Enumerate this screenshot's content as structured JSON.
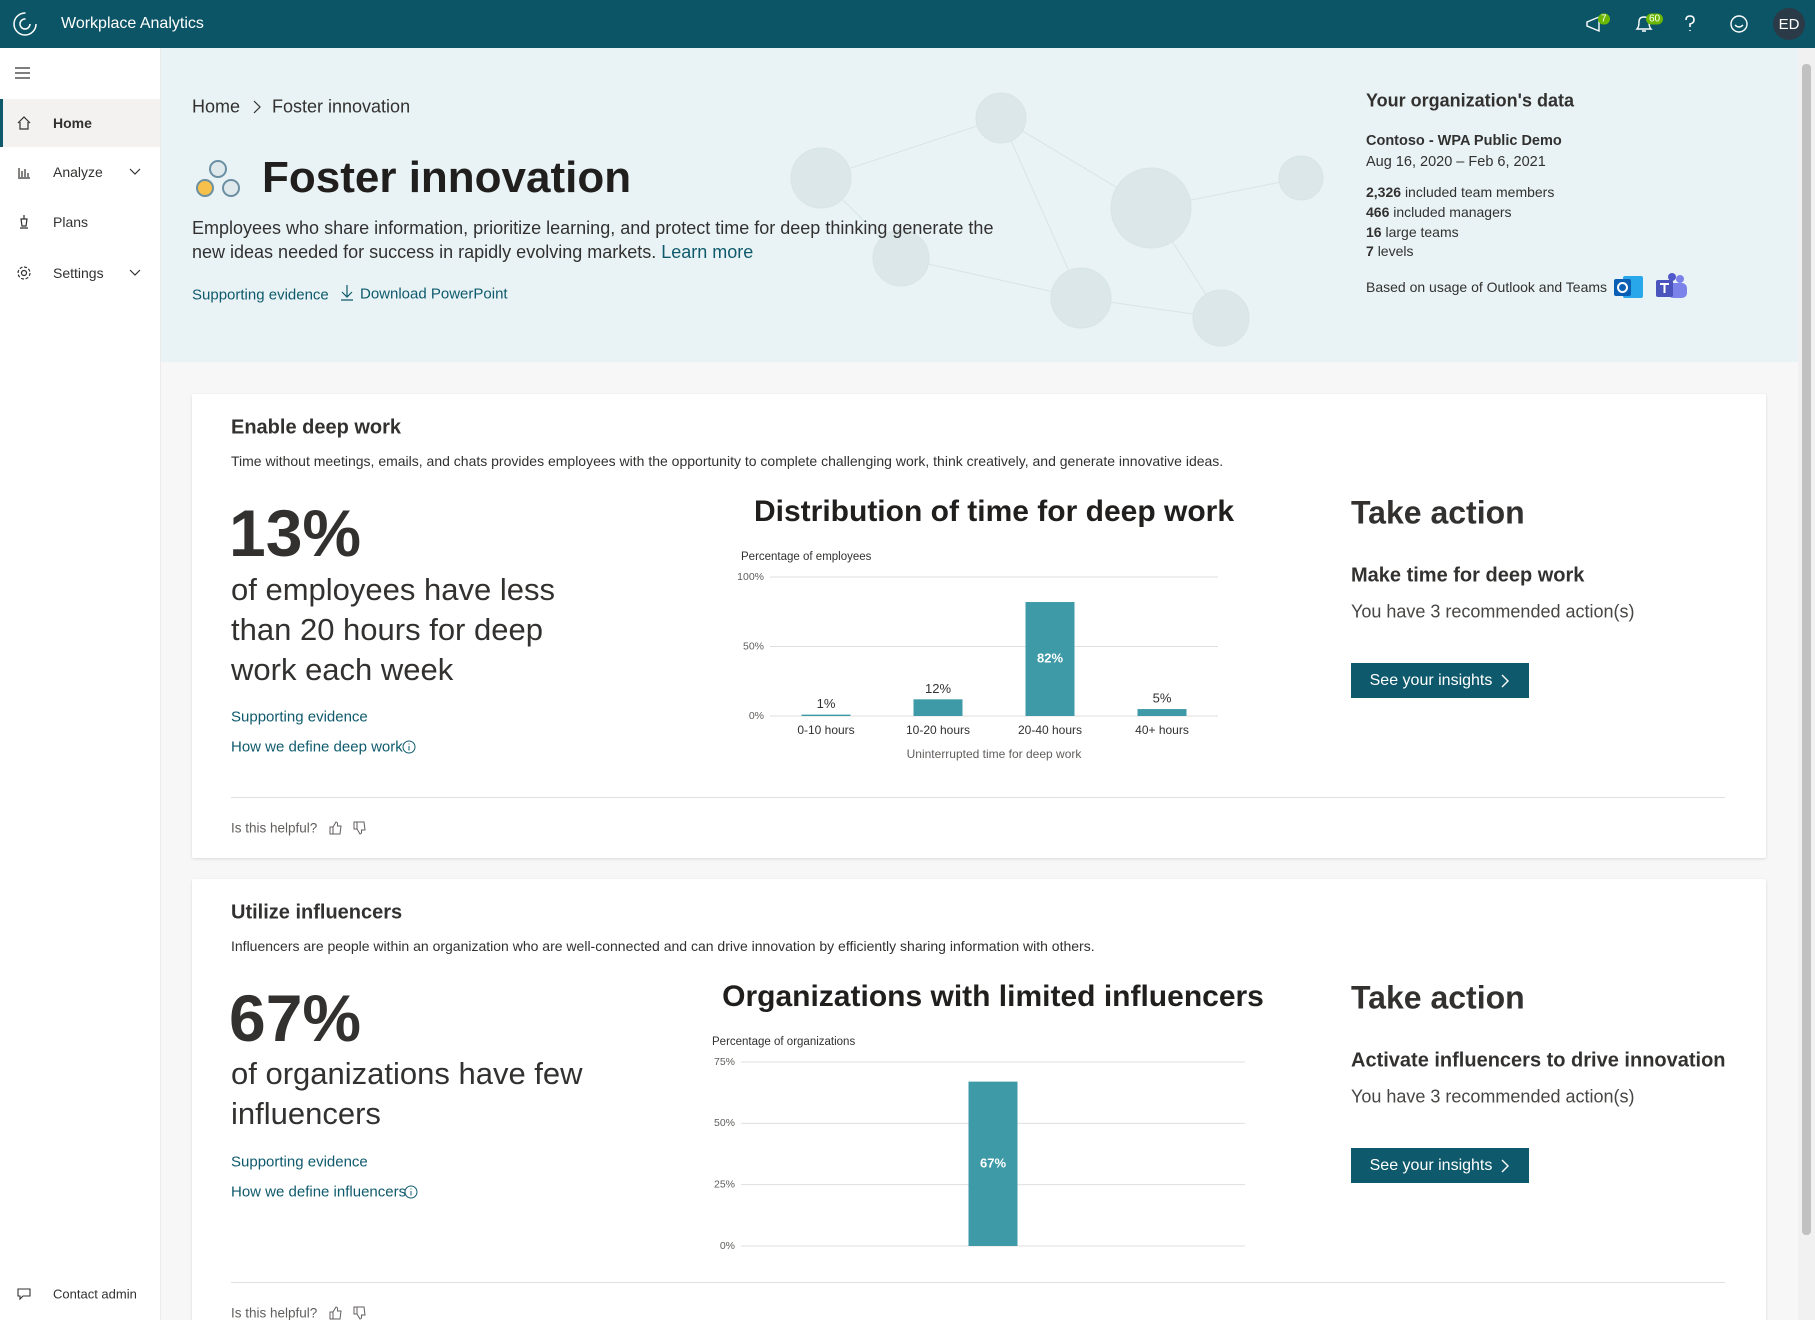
{
  "app": {
    "title": "Workplace Analytics",
    "announcement_count": "7",
    "notification_count": "60",
    "user_initials": "ED"
  },
  "nav": {
    "items": [
      "Home",
      "Analyze",
      "Plans",
      "Settings"
    ],
    "contact": "Contact admin"
  },
  "header": {
    "breadcrumb": [
      "Home",
      "Foster innovation"
    ],
    "title": "Foster innovation",
    "description": "Employees who share information, prioritize learning, and protect time for deep thinking generate the new ideas needed for success in rapidly evolving markets.",
    "learn_more": "Learn more",
    "links": [
      "Supporting evidence",
      "Download PowerPoint"
    ]
  },
  "org_data": {
    "title": "Your organization's data",
    "name": "Contoso - WPA Public Demo",
    "date_range": "Aug 16, 2020 – Feb 6, 2021",
    "stats": [
      {
        "value": "2,326",
        "label": "included team members"
      },
      {
        "value": "466",
        "label": "included managers"
      },
      {
        "value": "16",
        "label": "large teams"
      },
      {
        "value": "7",
        "label": "levels"
      }
    ],
    "source": "Based on usage of Outlook and Teams"
  },
  "sections": [
    {
      "title": "Enable deep work",
      "description": "Time without meetings, emails, and chats provides employees with the opportunity to complete challenging work, think creatively, and generate innovative ideas.",
      "stat": "13%",
      "stat_text": "of employees have less than 20 hours for deep work each week",
      "links": [
        "Supporting evidence",
        "How we define deep work"
      ],
      "action": {
        "heading": "Take action",
        "title": "Make time for deep work",
        "text": "You have 3 recommended action(s)",
        "button": "See your insights"
      },
      "feedback": "Is this helpful?"
    },
    {
      "title": "Utilize influencers",
      "description": "Influencers are people within an organization who are well-connected and can drive innovation by efficiently sharing information with others.",
      "stat": "67%",
      "stat_text": "of organizations have few influencers",
      "links": [
        "Supporting evidence",
        "How we define influencers"
      ],
      "action": {
        "heading": "Take action",
        "title": "Activate influencers to drive innovation",
        "text": "You have 3 recommended action(s)",
        "button": "See your insights"
      },
      "feedback": "Is this helpful?"
    }
  ],
  "chart_data": [
    {
      "type": "bar",
      "title": "Distribution of time for deep work",
      "ylabel": "Percentage of employees",
      "xlabel": "Uninterrupted time for deep work",
      "categories": [
        "0-10 hours",
        "10-20 hours",
        "20-40 hours",
        "40+ hours"
      ],
      "values": [
        1,
        12,
        82,
        5
      ],
      "value_labels": [
        "1%",
        "12%",
        "82%",
        "5%"
      ],
      "color": "#3f9aa8",
      "ylim": [
        0,
        100
      ],
      "yticks": [
        {
          "value": 0,
          "label": "0%"
        },
        {
          "value": 50,
          "label": "50%"
        },
        {
          "value": 100,
          "label": "100%"
        }
      ],
      "grid": true
    },
    {
      "type": "bar",
      "title": "Organizations with limited influencers",
      "ylabel": "Percentage of organizations",
      "categories": [
        null
      ],
      "values": [
        67
      ],
      "value_labels": [
        "67%"
      ],
      "color": "#3f9aa8",
      "ylim": [
        0,
        75
      ],
      "yticks": [
        {
          "value": 0,
          "label": "0%"
        },
        {
          "value": 25,
          "label": "25%"
        },
        {
          "value": 50,
          "label": "50%"
        },
        {
          "value": 75,
          "label": "75%"
        }
      ],
      "grid": true
    }
  ]
}
